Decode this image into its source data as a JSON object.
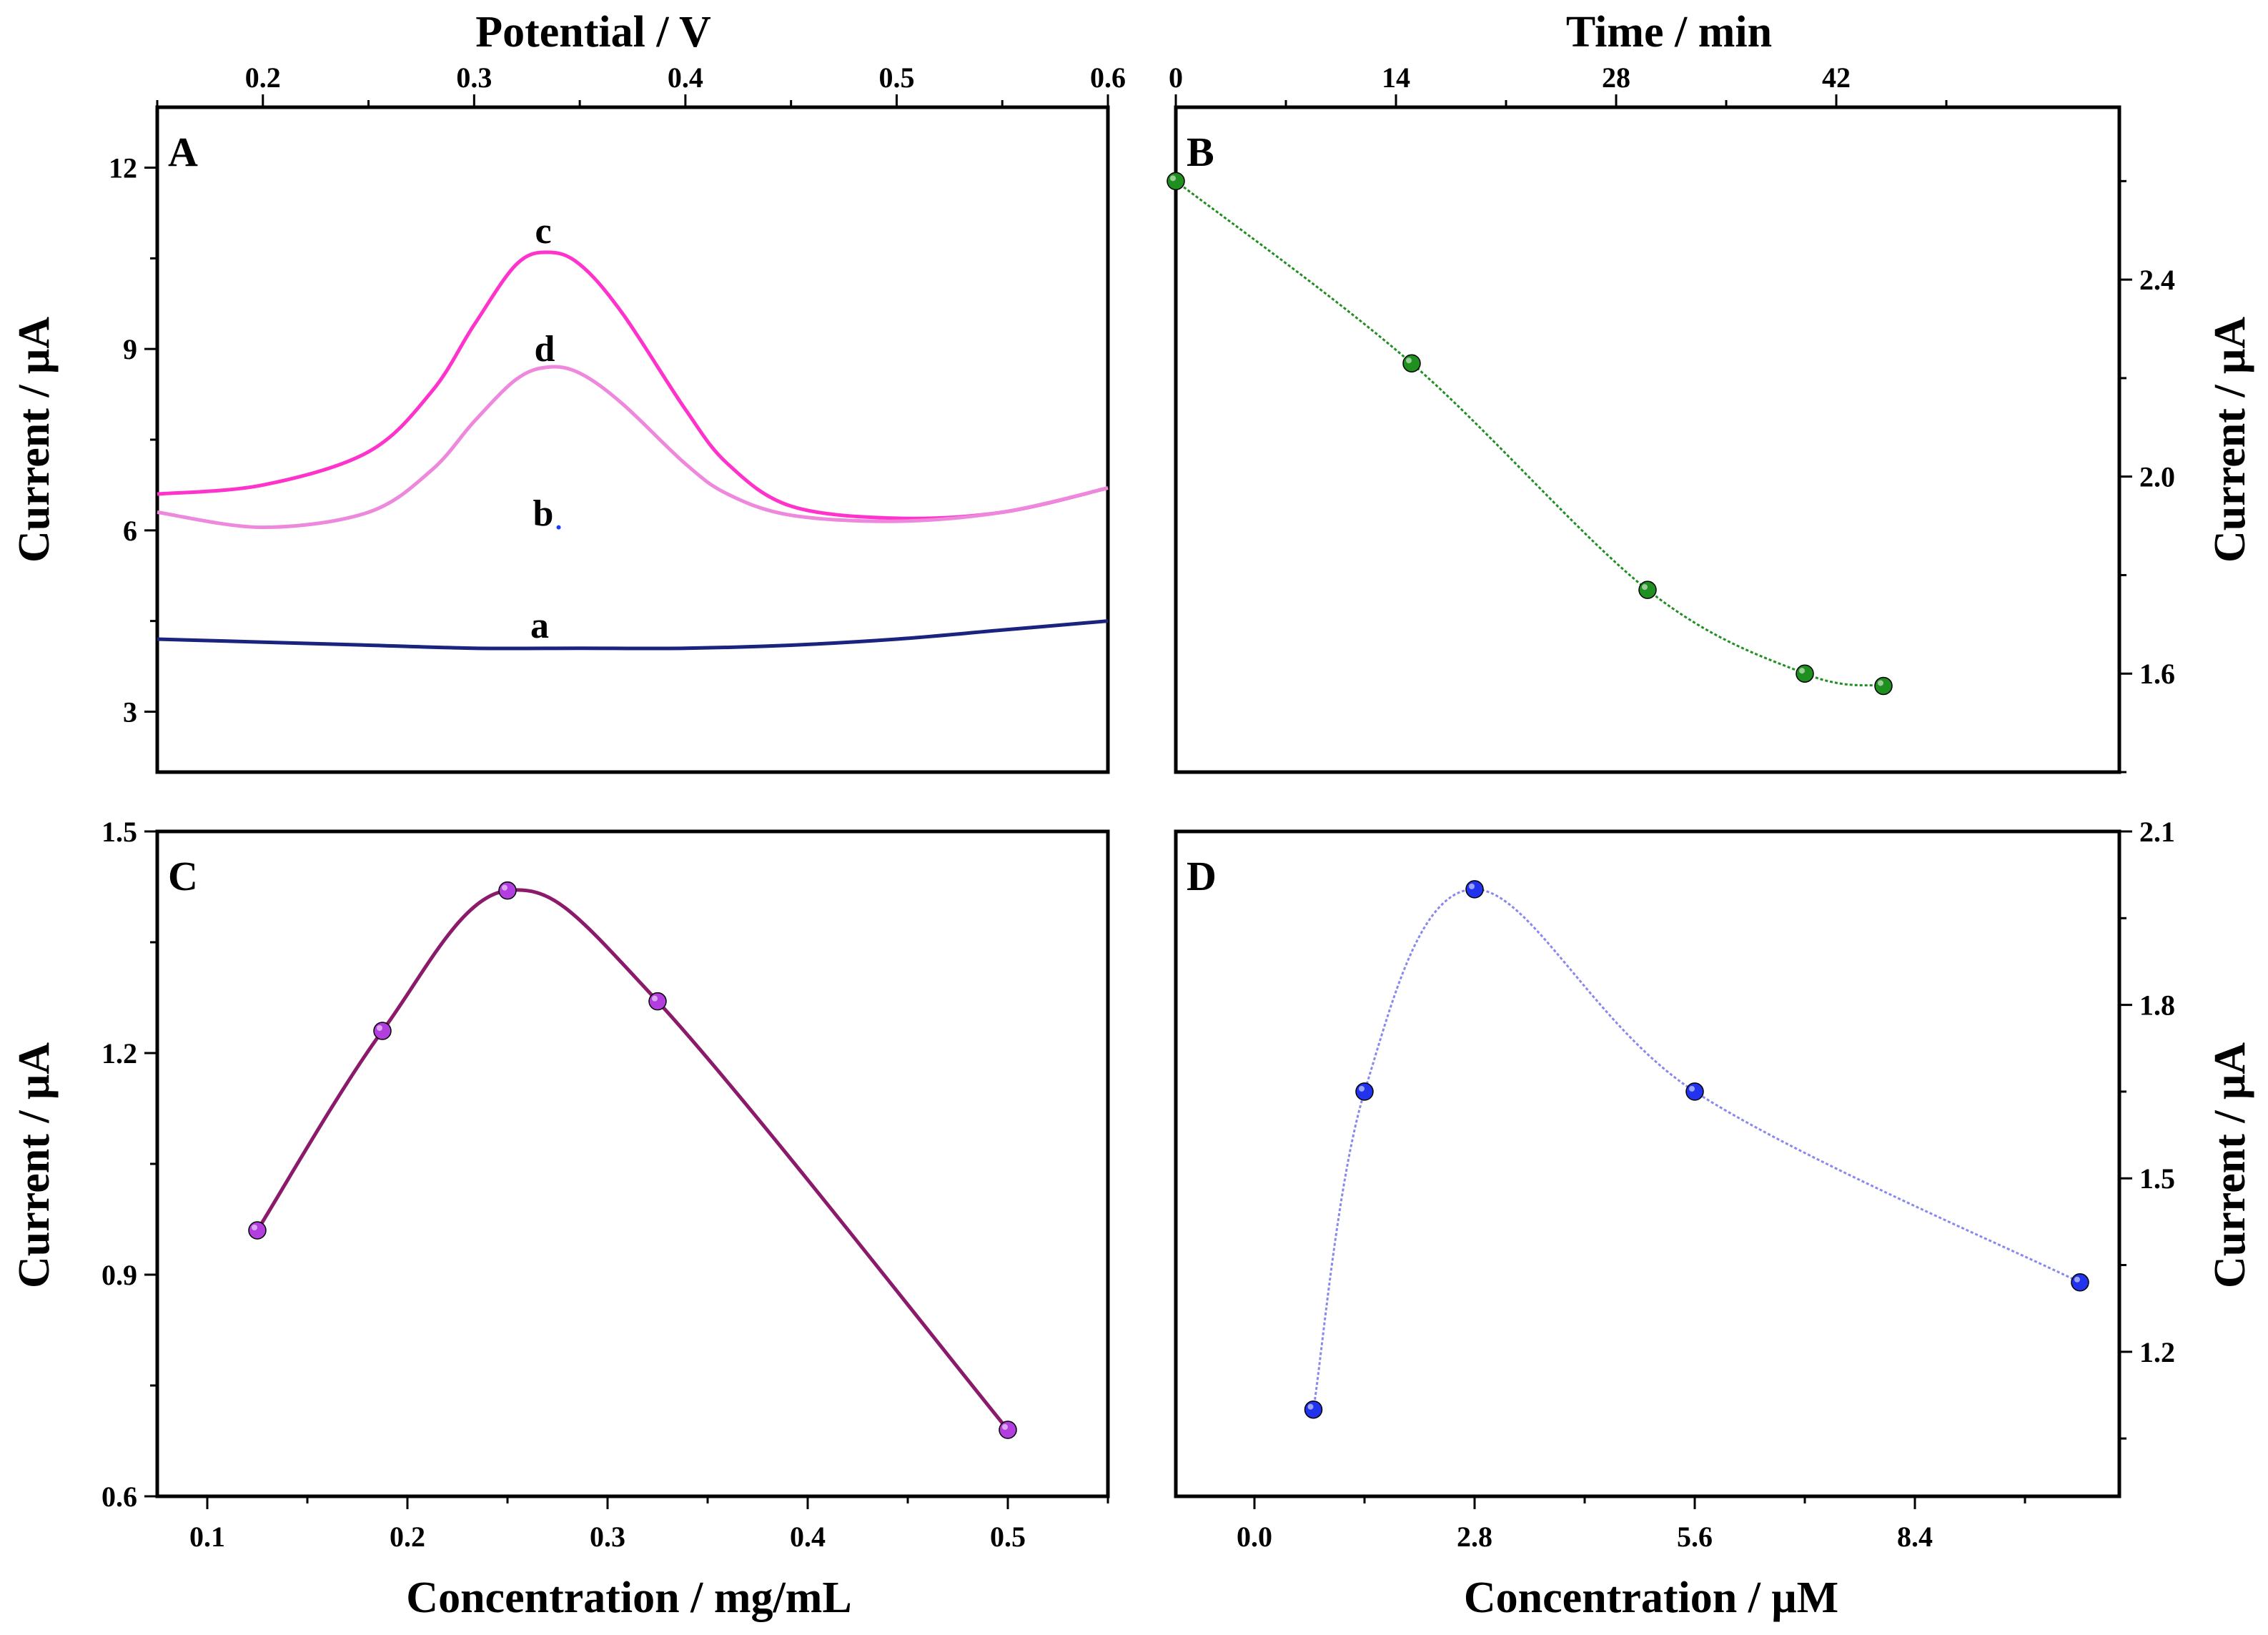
{
  "chart_data": [
    {
      "panel": "A",
      "type": "line",
      "xlabel": "Potential / V",
      "ylabel": "Current / μA",
      "xlim": [
        0.15,
        0.6
      ],
      "ylim": [
        2.0,
        13.0
      ],
      "xticks": [
        "0.2",
        "0.3",
        "0.4",
        "0.5",
        "0.6"
      ],
      "yticks": [
        "3",
        "6",
        "9",
        "12"
      ],
      "series": [
        {
          "name": "a",
          "color": "#1a237e",
          "x": [
            0.15,
            0.2,
            0.25,
            0.3,
            0.35,
            0.4,
            0.45,
            0.5,
            0.55,
            0.6
          ],
          "y": [
            4.2,
            4.15,
            4.1,
            4.05,
            4.05,
            4.05,
            4.1,
            4.2,
            4.35,
            4.5
          ]
        },
        {
          "name": "c",
          "color": "#ff33cc",
          "x": [
            0.15,
            0.2,
            0.25,
            0.28,
            0.3,
            0.32,
            0.335,
            0.35,
            0.37,
            0.4,
            0.42,
            0.45,
            0.5,
            0.55,
            0.6
          ],
          "y": [
            6.6,
            6.75,
            7.3,
            8.3,
            9.4,
            10.4,
            10.6,
            10.4,
            9.6,
            8.0,
            7.1,
            6.4,
            6.2,
            6.3,
            6.7
          ]
        },
        {
          "name": "d",
          "color": "#ee88dd",
          "x": [
            0.15,
            0.2,
            0.25,
            0.28,
            0.3,
            0.32,
            0.335,
            0.35,
            0.37,
            0.4,
            0.42,
            0.45,
            0.5,
            0.55,
            0.6
          ],
          "y": [
            6.3,
            6.05,
            6.3,
            7.0,
            7.8,
            8.5,
            8.7,
            8.6,
            8.1,
            7.1,
            6.6,
            6.25,
            6.15,
            6.3,
            6.7
          ]
        }
      ],
      "curve_labels": [
        "a",
        "b",
        "c",
        "d"
      ],
      "marker": {
        "name": "b",
        "x": 0.34,
        "y": 6.05
      }
    },
    {
      "panel": "B",
      "type": "line",
      "xlabel": "Time / min",
      "ylabel": "Current / μA",
      "xlim": [
        0,
        60
      ],
      "ylim": [
        1.4,
        2.75
      ],
      "xticks": [
        "0",
        "14",
        "28",
        "42"
      ],
      "yticks": [
        "1.6",
        "2.0",
        "2.4"
      ],
      "series": [
        {
          "name": "B",
          "color": "#1f8f1f",
          "x": [
            0,
            15,
            30,
            40,
            45
          ],
          "y": [
            2.6,
            2.23,
            1.77,
            1.6,
            1.575
          ]
        }
      ]
    },
    {
      "panel": "C",
      "type": "line",
      "xlabel": "Concentration / mg/mL",
      "ylabel": "Current / μA",
      "xlim": [
        0.075,
        0.55
      ],
      "ylim": [
        0.6,
        1.5
      ],
      "xticks": [
        "0.1",
        "0.2",
        "0.3",
        "0.4",
        "0.5"
      ],
      "yticks": [
        "0.6",
        "0.9",
        "1.2",
        "1.5"
      ],
      "series": [
        {
          "name": "C",
          "color": "#8b1a6b",
          "marker_color": "#b23ee0",
          "x": [
            0.125,
            0.1875,
            0.25,
            0.325,
            0.5
          ],
          "y": [
            0.96,
            1.23,
            1.42,
            1.27,
            0.69
          ]
        }
      ]
    },
    {
      "panel": "D",
      "type": "line",
      "xlabel": "Concentration / μM",
      "ylabel": "Current / μA",
      "xlim": [
        -1.0,
        11.0
      ],
      "ylim": [
        0.95,
        2.1
      ],
      "xticks": [
        "0.0",
        "2.8",
        "5.6",
        "8.4"
      ],
      "yticks": [
        "1.2",
        "1.5",
        "1.8",
        "2.1"
      ],
      "series": [
        {
          "name": "D",
          "color": "#8888ee",
          "marker_color": "#2233ee",
          "x": [
            0.75,
            1.4,
            2.8,
            5.6,
            10.5
          ],
          "y": [
            1.1,
            1.65,
            2.0,
            1.65,
            1.32
          ]
        }
      ]
    }
  ]
}
